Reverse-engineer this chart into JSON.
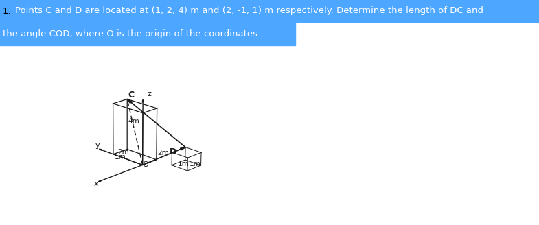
{
  "title_line1": "Points C and D are located at (1, 2, 4) m and (2, -1, 1) m respectively. Determine the length of DC and",
  "title_line2": "the angle COD, where O is the origin of the coordinates.",
  "title_number": "1.",
  "highlight_color": "#4da6ff",
  "title_text_color": "#ffffff",
  "number_color": "#000000",
  "title_fontsize": 9.5,
  "bg_color": "#ffffff",
  "box_color": "#1a1a1a",
  "C": [
    1,
    2,
    4
  ],
  "D": [
    2,
    -1,
    1
  ],
  "O": [
    0,
    0,
    0
  ],
  "label_C": "C",
  "label_D": "D",
  "label_O": "O",
  "label_x": "x",
  "label_y": "y",
  "label_z": "z",
  "fig_width": 7.85,
  "fig_height": 3.28,
  "dpi": 100
}
